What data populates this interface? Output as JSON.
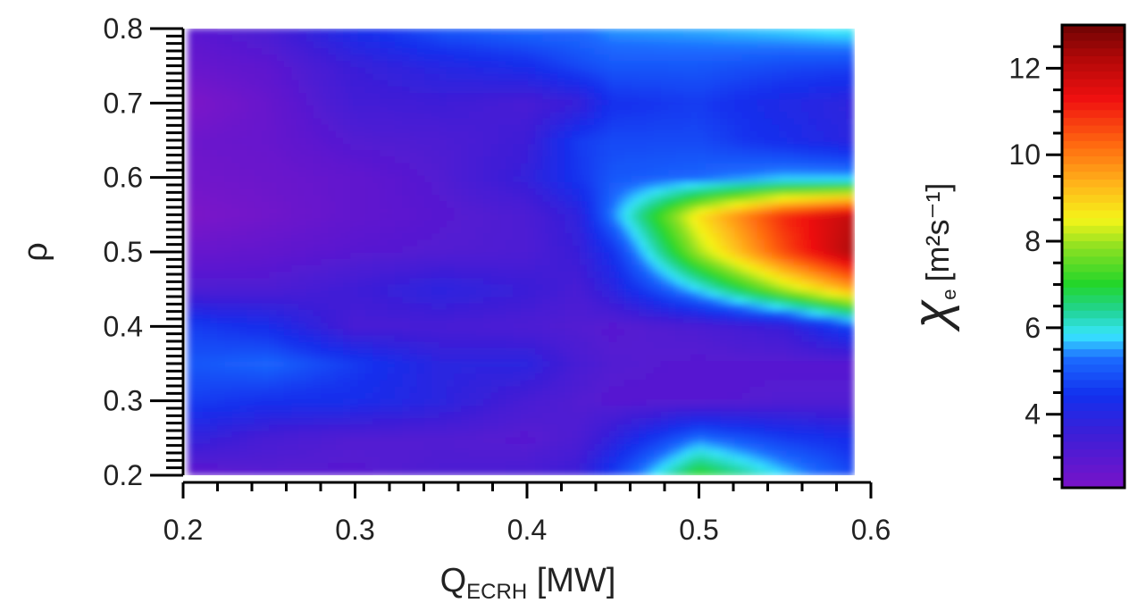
{
  "chart_data": {
    "type": "heatmap",
    "title": "",
    "xlabel": {
      "main": "Q",
      "sub": "ECRH",
      "unit": " [MW]"
    },
    "ylabel": "ρ",
    "xlim": [
      0.2,
      0.6
    ],
    "ylim": [
      0.2,
      0.8
    ],
    "data_extent": {
      "x": [
        0.203,
        0.59
      ],
      "y": [
        0.2,
        0.8
      ]
    },
    "x_ticks": [
      "0.2",
      "0.3",
      "0.4",
      "0.5",
      "0.6"
    ],
    "y_ticks": [
      "0.2",
      "0.3",
      "0.4",
      "0.5",
      "0.6",
      "0.7",
      "0.8"
    ],
    "x": [
      0.21,
      0.25,
      0.3,
      0.35,
      0.4,
      0.43,
      0.45,
      0.5,
      0.55,
      0.59
    ],
    "y": [
      0.2,
      0.25,
      0.3,
      0.35,
      0.4,
      0.45,
      0.5,
      0.55,
      0.6,
      0.65,
      0.7,
      0.75,
      0.8
    ],
    "z": [
      [
        2.8,
        3.0,
        3.0,
        3.2,
        3.3,
        3.6,
        4.6,
        7.2,
        5.8,
        4.8
      ],
      [
        3.7,
        3.3,
        3.1,
        3.1,
        3.0,
        3.2,
        3.8,
        5.3,
        4.6,
        4.3
      ],
      [
        4.6,
        4.4,
        4.3,
        3.9,
        3.3,
        3.1,
        3.0,
        3.0,
        3.1,
        3.1
      ],
      [
        5.0,
        5.2,
        4.6,
        3.9,
        3.9,
        3.3,
        3.1,
        3.0,
        3.0,
        3.0
      ],
      [
        4.6,
        4.3,
        3.3,
        3.3,
        3.2,
        3.1,
        3.0,
        3.2,
        3.6,
        4.8
      ],
      [
        3.2,
        3.2,
        3.5,
        3.9,
        3.6,
        3.3,
        3.9,
        5.8,
        8.0,
        9.5
      ],
      [
        2.7,
        2.8,
        3.0,
        3.1,
        3.2,
        3.6,
        4.4,
        8.0,
        10.6,
        12.3
      ],
      [
        2.3,
        2.5,
        2.8,
        3.0,
        3.2,
        3.8,
        5.4,
        8.8,
        11.0,
        12.0
      ],
      [
        2.5,
        2.6,
        2.8,
        3.1,
        3.7,
        4.5,
        5.0,
        5.2,
        5.6,
        5.6
      ],
      [
        2.6,
        2.7,
        3.1,
        3.2,
        3.5,
        4.6,
        4.8,
        4.8,
        4.3,
        3.9
      ],
      [
        2.3,
        2.7,
        3.4,
        3.5,
        3.3,
        3.6,
        4.4,
        4.6,
        4.1,
        3.8
      ],
      [
        2.7,
        2.9,
        3.6,
        4.0,
        4.3,
        4.8,
        5.0,
        5.0,
        4.8,
        4.7
      ],
      [
        3.0,
        3.3,
        4.3,
        5.0,
        5.3,
        5.3,
        5.5,
        5.6,
        5.8,
        6.0
      ]
    ],
    "colorbar": {
      "label": {
        "symbol": "χ",
        "sub": "e",
        "unit": "[m²s⁻¹]"
      },
      "range": [
        2.3,
        13
      ],
      "ticks": [
        "4",
        "6",
        "8",
        "10",
        "12"
      ],
      "colormap": [
        [
          0.0,
          "#7a12c8"
        ],
        [
          0.12,
          "#3a1fd8"
        ],
        [
          0.2,
          "#1230ee"
        ],
        [
          0.28,
          "#1c6cff"
        ],
        [
          0.33,
          "#38e6ff"
        ],
        [
          0.38,
          "#22d49a"
        ],
        [
          0.44,
          "#22d62a"
        ],
        [
          0.52,
          "#8ce022"
        ],
        [
          0.58,
          "#f5f519"
        ],
        [
          0.66,
          "#ffb21a"
        ],
        [
          0.74,
          "#ff6a10"
        ],
        [
          0.84,
          "#f01010"
        ],
        [
          0.93,
          "#b00808"
        ],
        [
          1.0,
          "#6e0404"
        ]
      ],
      "below_range_colors": [
        "#808080",
        "#000000"
      ]
    }
  }
}
